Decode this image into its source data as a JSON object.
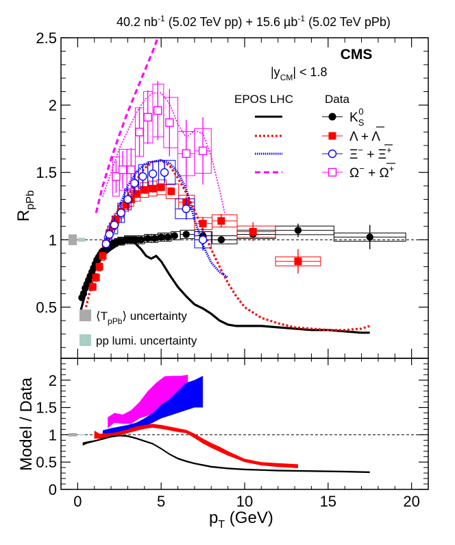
{
  "header": {
    "lumi_pp": "40.2 nb",
    "lumi_pp_exp": "-1",
    "energy_pp": " (5.02 TeV pp) + 15.6 ",
    "lumi_ppb_unit": "µb",
    "lumi_ppb_exp": "-1",
    "energy_ppb": " (5.02 TeV pPb)"
  },
  "labels": {
    "cms": "CMS",
    "rap_pre": "|y",
    "rap_sub": "CM",
    "rap_post": "| < 1.8",
    "epos": "EPOS LHC",
    "data": "Data",
    "top_ylabel": "R",
    "top_ylabel_sub": "pPb",
    "bot_ylabel": "Model / Data",
    "xlabel": "p",
    "xlabel_sub": "T",
    "xlabel_unit": " (GeV)",
    "tppb_pre": "⟨T",
    "tppb_sub": "pPb",
    "tppb_post": "⟩ uncertainty",
    "lumi_unc": "pp lumi. uncertainty"
  },
  "legend": {
    "k0s": {
      "main": "K",
      "sub": "S",
      "sup": "0"
    },
    "lam": {
      "text": "Λ + Λ"
    },
    "xi": {
      "a": "Ξ",
      "a_sup": "−",
      "mid": " + ",
      "b": "Ξ",
      "b_sup": "+"
    },
    "om": {
      "a": "Ω",
      "a_sup": "−",
      "mid": " + ",
      "b": "Ω",
      "b_sup": "+"
    }
  },
  "colors": {
    "k0s": "#000000",
    "lam": "#ff0000",
    "xi": "#0000ff",
    "om": "#ff00ff",
    "tppb_box": "#aaaaaa",
    "lumi_box": "#a8cfc3"
  },
  "chart_data": [
    {
      "type": "scatter",
      "panel": "top",
      "xlabel": "pT (GeV)",
      "ylabel": "RpPb",
      "xlim": [
        -1.0,
        21.0
      ],
      "ylim": [
        0.12,
        2.5
      ],
      "xticks": [
        "0",
        "5",
        "10",
        "15",
        "20"
      ],
      "yticks": [
        "0.5",
        "1",
        "1.5",
        "2",
        "2.5"
      ],
      "reference_line": 1.0,
      "series": [
        {
          "name": "KS0",
          "x": [
            0.25,
            0.35,
            0.45,
            0.55,
            0.65,
            0.75,
            0.85,
            0.95,
            1.05,
            1.15,
            1.25,
            1.35,
            1.45,
            1.55,
            1.65,
            1.75,
            1.85,
            1.95,
            2.1,
            2.3,
            2.5,
            2.7,
            2.9,
            3.1,
            3.3,
            3.5,
            3.8,
            4.2,
            4.6,
            5.0,
            5.4,
            5.8,
            6.5,
            7.5,
            8.6,
            10.5,
            13.2,
            17.5
          ],
          "y": [
            0.57,
            0.6,
            0.64,
            0.67,
            0.7,
            0.73,
            0.76,
            0.79,
            0.82,
            0.85,
            0.87,
            0.89,
            0.91,
            0.92,
            0.93,
            0.94,
            0.95,
            0.96,
            0.97,
            0.98,
            0.99,
            0.99,
            1.0,
            1.0,
            1.0,
            1.0,
            1.0,
            1.01,
            1.01,
            1.02,
            1.02,
            1.03,
            1.04,
            1.03,
            1.0,
            1.04,
            1.07,
            1.02
          ],
          "yerr": [
            0.02,
            0.02,
            0.02,
            0.02,
            0.02,
            0.02,
            0.02,
            0.02,
            0.02,
            0.02,
            0.02,
            0.02,
            0.02,
            0.02,
            0.02,
            0.02,
            0.02,
            0.02,
            0.02,
            0.02,
            0.02,
            0.02,
            0.02,
            0.02,
            0.02,
            0.02,
            0.02,
            0.02,
            0.02,
            0.02,
            0.02,
            0.02,
            0.02,
            0.02,
            0.02,
            0.03,
            0.05,
            0.09
          ]
        },
        {
          "name": "Lambda+antiLambda",
          "x": [
            0.9,
            1.1,
            1.3,
            1.5,
            1.7,
            1.9,
            2.1,
            2.3,
            2.6,
            2.9,
            3.2,
            3.5,
            4.0,
            4.5,
            5.0,
            5.6,
            6.5,
            7.5,
            8.6,
            10.5,
            13.2
          ],
          "y": [
            0.65,
            0.72,
            0.8,
            0.88,
            0.97,
            1.05,
            1.1,
            1.15,
            1.21,
            1.26,
            1.3,
            1.34,
            1.37,
            1.38,
            1.39,
            1.36,
            1.28,
            1.12,
            1.14,
            1.06,
            0.84
          ],
          "yerr": [
            0.03,
            0.03,
            0.03,
            0.03,
            0.03,
            0.03,
            0.03,
            0.03,
            0.03,
            0.03,
            0.03,
            0.03,
            0.03,
            0.03,
            0.03,
            0.03,
            0.04,
            0.05,
            0.05,
            0.07,
            0.09
          ]
        },
        {
          "name": "Xi-+Xi+",
          "x": [
            1.7,
            1.9,
            2.2,
            2.6,
            3.0,
            3.4,
            3.9,
            4.5,
            5.2,
            6.5,
            7.5
          ],
          "y": [
            0.97,
            1.04,
            1.11,
            1.2,
            1.3,
            1.42,
            1.47,
            1.49,
            1.5,
            1.23,
            1.0
          ],
          "yerr": [
            0.05,
            0.05,
            0.06,
            0.07,
            0.08,
            0.08,
            0.08,
            0.08,
            0.08,
            0.08,
            0.08
          ]
        },
        {
          "name": "Omega-+Omega+",
          "x": [
            2.3,
            2.7,
            3.2,
            3.7,
            4.2,
            4.8,
            5.5,
            6.5,
            7.5
          ],
          "y": [
            1.47,
            1.52,
            1.52,
            1.8,
            1.91,
            1.96,
            1.87,
            1.64,
            1.66
          ],
          "yerr": [
            0.12,
            0.14,
            0.16,
            0.18,
            0.2,
            0.22,
            0.25,
            0.25,
            0.25
          ]
        }
      ],
      "models": [
        {
          "name": "EPOS LHC KS0",
          "x": [
            0.2,
            0.5,
            1.0,
            1.5,
            2.0,
            2.5,
            3.0,
            3.4,
            3.8,
            4.1,
            4.4,
            4.7,
            5.0,
            5.5,
            6.0,
            6.5,
            7.0,
            7.5,
            8.0,
            8.5,
            9.0,
            9.5,
            10.0,
            11.0,
            12.0,
            13.0,
            14.0,
            15.0,
            16.0,
            17.0,
            17.5
          ],
          "y": [
            0.48,
            0.62,
            0.78,
            0.88,
            0.93,
            0.97,
            0.99,
            0.98,
            0.93,
            0.88,
            0.86,
            0.88,
            0.84,
            0.74,
            0.65,
            0.58,
            0.52,
            0.49,
            0.45,
            0.4,
            0.37,
            0.36,
            0.36,
            0.36,
            0.35,
            0.34,
            0.33,
            0.33,
            0.32,
            0.31,
            0.31
          ]
        },
        {
          "name": "EPOS LHC Lambda",
          "x": [
            0.5,
            1.0,
            1.5,
            2.0,
            2.5,
            3.0,
            3.5,
            4.0,
            4.5,
            5.0,
            5.5,
            6.0,
            6.5,
            7.0,
            7.5,
            8.0,
            8.5,
            9.0,
            9.5,
            10.0,
            11.0,
            12.0,
            13.0,
            14.0,
            15.0,
            16.0,
            17.0,
            17.5
          ],
          "y": [
            0.5,
            0.75,
            0.93,
            1.05,
            1.18,
            1.32,
            1.44,
            1.53,
            1.58,
            1.59,
            1.55,
            1.46,
            1.35,
            1.22,
            1.07,
            0.93,
            0.8,
            0.68,
            0.58,
            0.5,
            0.42,
            0.38,
            0.35,
            0.34,
            0.33,
            0.33,
            0.34,
            0.36
          ]
        },
        {
          "name": "EPOS LHC Xi",
          "x": [
            1.5,
            2.0,
            2.5,
            3.0,
            3.5,
            4.0,
            4.5,
            5.0,
            5.5,
            6.0,
            6.5,
            7.0,
            7.5,
            8.0,
            8.5,
            9.0
          ],
          "y": [
            0.95,
            1.1,
            1.25,
            1.4,
            1.5,
            1.56,
            1.58,
            1.59,
            1.57,
            1.5,
            1.38,
            1.15,
            0.96,
            0.83,
            0.76,
            0.72
          ]
        },
        {
          "name": "EPOS LHC Omega",
          "x": [
            1.5,
            2.0,
            2.5,
            3.0,
            3.5,
            4.0,
            4.5,
            5.0,
            5.5,
            6.0,
            6.5,
            7.0,
            7.5,
            8.0,
            8.5,
            8.8
          ],
          "y": [
            1.32,
            1.5,
            1.68,
            1.81,
            1.94,
            2.04,
            2.09,
            2.09,
            2.01,
            1.86,
            1.76,
            1.81,
            1.79,
            1.62,
            1.37,
            1.2
          ]
        },
        {
          "name": "EPOS LHC Omega (steep)",
          "x": [
            1.1,
            1.5,
            2.0,
            2.5,
            3.0,
            3.5,
            4.0,
            4.5,
            4.8
          ],
          "y": [
            1.2,
            1.4,
            1.6,
            1.78,
            1.95,
            2.1,
            2.25,
            2.4,
            2.5
          ]
        }
      ]
    },
    {
      "type": "area",
      "panel": "bottom",
      "xlabel": "pT (GeV)",
      "ylabel": "Model / Data",
      "xlim": [
        -1.0,
        21.0
      ],
      "ylim": [
        0.0,
        2.4
      ],
      "xticks": [
        "0",
        "5",
        "10",
        "15",
        "20"
      ],
      "yticks": [
        "0",
        "0.5",
        "1",
        "1.5",
        "2"
      ],
      "reference_line": 1.0,
      "series": [
        {
          "name": "KS0 ratio",
          "x": [
            0.3,
            0.6,
            1.0,
            1.5,
            2.0,
            2.5,
            3.0,
            3.5,
            4.0,
            4.5,
            5.0,
            5.5,
            6.0,
            6.5,
            7.0,
            8.0,
            9.0,
            10.0,
            12.0,
            14.0,
            16.0,
            17.5
          ],
          "lo": [
            0.8,
            0.84,
            0.87,
            0.91,
            0.95,
            0.97,
            0.96,
            0.92,
            0.87,
            0.82,
            0.73,
            0.63,
            0.55,
            0.5,
            0.46,
            0.4,
            0.37,
            0.35,
            0.33,
            0.32,
            0.31,
            0.3
          ],
          "hi": [
            0.86,
            0.88,
            0.9,
            0.94,
            0.98,
            1.0,
            0.99,
            0.95,
            0.9,
            0.85,
            0.76,
            0.66,
            0.58,
            0.53,
            0.49,
            0.43,
            0.4,
            0.38,
            0.36,
            0.35,
            0.34,
            0.33
          ]
        },
        {
          "name": "Lambda ratio",
          "x": [
            1.0,
            1.5,
            2.0,
            2.5,
            3.0,
            3.5,
            4.0,
            4.5,
            5.0,
            5.5,
            6.0,
            6.5,
            7.0,
            7.5,
            8.0,
            8.5,
            9.0,
            9.5,
            10.0,
            11.0,
            12.0,
            13.2
          ],
          "lo": [
            0.93,
            0.93,
            0.95,
            0.99,
            1.03,
            1.07,
            1.11,
            1.13,
            1.11,
            1.08,
            1.05,
            1.03,
            0.94,
            0.84,
            0.76,
            0.69,
            0.62,
            0.56,
            0.5,
            0.44,
            0.41,
            0.39
          ],
          "hi": [
            1.02,
            1.02,
            1.03,
            1.06,
            1.1,
            1.15,
            1.18,
            1.2,
            1.18,
            1.15,
            1.12,
            1.09,
            1.02,
            0.93,
            0.85,
            0.78,
            0.7,
            0.63,
            0.56,
            0.5,
            0.48,
            0.46
          ]
        },
        {
          "name": "Xi ratio",
          "x": [
            1.5,
            2.0,
            2.5,
            3.0,
            3.5,
            4.0,
            4.5,
            5.0,
            5.5,
            6.0,
            6.5,
            7.0,
            7.5
          ],
          "lo": [
            0.98,
            1.02,
            1.05,
            1.07,
            1.1,
            1.15,
            1.22,
            1.3,
            1.35,
            1.4,
            1.45,
            1.5,
            1.5
          ],
          "hi": [
            1.08,
            1.12,
            1.15,
            1.18,
            1.22,
            1.3,
            1.4,
            1.55,
            1.65,
            1.8,
            1.95,
            2.0,
            2.08
          ]
        },
        {
          "name": "Omega ratio",
          "x": [
            1.8,
            2.2,
            2.7,
            3.2,
            3.7,
            4.2,
            4.7,
            5.2,
            5.7,
            6.2,
            6.6
          ],
          "lo": [
            1.12,
            1.22,
            1.2,
            1.2,
            1.3,
            1.35,
            1.4,
            1.45,
            1.5,
            1.5,
            1.5
          ],
          "hi": [
            1.32,
            1.4,
            1.37,
            1.45,
            1.6,
            1.8,
            1.95,
            2.07,
            2.08,
            2.08,
            2.1
          ]
        }
      ]
    }
  ]
}
